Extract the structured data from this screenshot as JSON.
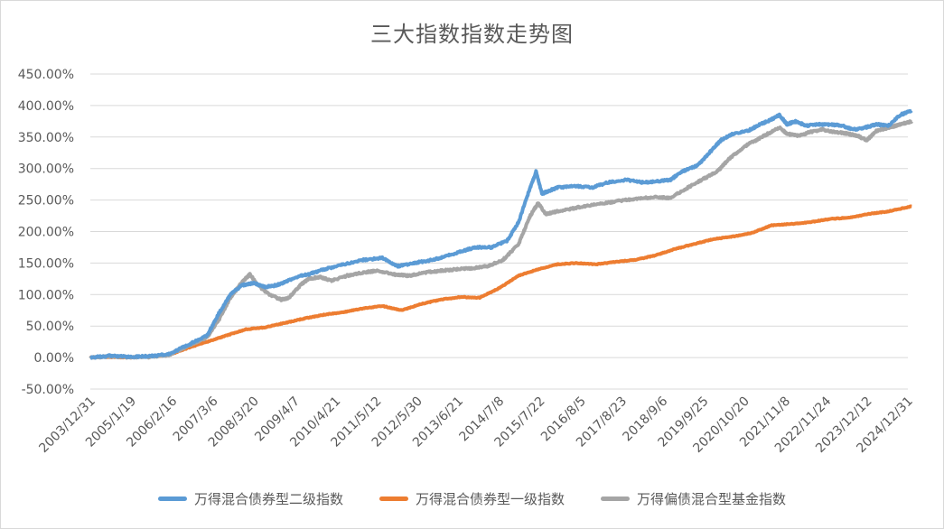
{
  "chart_data": {
    "type": "line",
    "title": "三大指数指数走势图",
    "xlabel": "",
    "ylabel": "",
    "ylim": [
      -50,
      450
    ],
    "yticks": [
      "-50.00%",
      "0.00%",
      "50.00%",
      "100.00%",
      "150.00%",
      "200.00%",
      "250.00%",
      "300.00%",
      "350.00%",
      "400.00%",
      "450.00%"
    ],
    "xticks": [
      "2003/12/31",
      "2005/1/19",
      "2006/2/16",
      "2007/3/6",
      "2008/3/20",
      "2009/4/7",
      "2010/4/21",
      "2011/5/12",
      "2012/5/30",
      "2013/6/21",
      "2014/7/8",
      "2015/7/22",
      "2016/8/5",
      "2017/8/23",
      "2018/9/6",
      "2019/9/25",
      "2020/10/20",
      "2021/11/8",
      "2022/11/24",
      "2023/12/12",
      "2024/12/31"
    ],
    "grid": true,
    "legend_position": "bottom",
    "series": [
      {
        "name": "万得混合债券型二级指数",
        "color": "#5b9bd5",
        "x": [
          2004.0,
          2004.5,
          2005.0,
          2005.5,
          2006.0,
          2006.5,
          2007.0,
          2007.3,
          2007.6,
          2007.9,
          2008.2,
          2008.5,
          2008.8,
          2009.0,
          2009.3,
          2009.6,
          2010.0,
          2010.5,
          2011.0,
          2011.5,
          2011.9,
          2012.3,
          2012.8,
          2013.2,
          2013.6,
          2013.9,
          2014.3,
          2014.7,
          2015.0,
          2015.3,
          2015.45,
          2015.6,
          2015.8,
          2016.0,
          2016.5,
          2016.9,
          2017.3,
          2017.8,
          2018.2,
          2018.6,
          2018.9,
          2019.2,
          2019.6,
          2019.9,
          2020.2,
          2020.5,
          2020.9,
          2021.2,
          2021.5,
          2021.7,
          2021.9,
          2022.1,
          2022.4,
          2022.7,
          2023.0,
          2023.3,
          2023.6,
          2023.9,
          2024.2,
          2024.5,
          2024.8,
          2025.1
        ],
        "y": [
          0,
          3,
          1,
          2,
          5,
          20,
          35,
          70,
          100,
          115,
          118,
          112,
          115,
          120,
          128,
          132,
          140,
          148,
          155,
          158,
          145,
          150,
          155,
          162,
          170,
          175,
          175,
          185,
          215,
          270,
          295,
          260,
          265,
          270,
          272,
          270,
          278,
          282,
          278,
          280,
          282,
          295,
          305,
          325,
          345,
          355,
          360,
          370,
          378,
          385,
          370,
          375,
          368,
          370,
          370,
          368,
          362,
          365,
          370,
          368,
          385,
          392
        ]
      },
      {
        "name": "万得混合债券型一级指数",
        "color": "#ed7d31",
        "x": [
          2004.0,
          2004.5,
          2005.0,
          2005.5,
          2006.0,
          2006.5,
          2007.0,
          2007.5,
          2008.0,
          2008.5,
          2009.0,
          2009.5,
          2010.0,
          2010.5,
          2011.0,
          2011.5,
          2012.0,
          2012.5,
          2013.0,
          2013.5,
          2014.0,
          2014.5,
          2015.0,
          2015.5,
          2016.0,
          2016.5,
          2017.0,
          2017.5,
          2018.0,
          2018.5,
          2019.0,
          2019.5,
          2020.0,
          2020.5,
          2021.0,
          2021.5,
          2022.0,
          2022.5,
          2023.0,
          2023.5,
          2024.0,
          2024.5,
          2025.1
        ],
        "y": [
          0,
          1,
          0,
          2,
          4,
          15,
          25,
          35,
          45,
          48,
          55,
          62,
          68,
          72,
          78,
          82,
          75,
          85,
          92,
          96,
          95,
          110,
          130,
          140,
          148,
          150,
          148,
          152,
          155,
          162,
          172,
          180,
          188,
          192,
          198,
          210,
          212,
          215,
          220,
          222,
          228,
          232,
          240
        ]
      },
      {
        "name": "万得偏债混合型基金指数",
        "color": "#a5a5a5",
        "x": [
          2004.0,
          2004.5,
          2005.0,
          2005.5,
          2006.0,
          2006.5,
          2007.0,
          2007.3,
          2007.6,
          2007.9,
          2008.1,
          2008.3,
          2008.6,
          2008.9,
          2009.1,
          2009.4,
          2009.6,
          2009.9,
          2010.2,
          2010.6,
          2011.0,
          2011.4,
          2011.8,
          2012.2,
          2012.6,
          2013.0,
          2013.4,
          2013.8,
          2014.2,
          2014.6,
          2015.0,
          2015.3,
          2015.5,
          2015.7,
          2016.0,
          2016.5,
          2017.0,
          2017.5,
          2018.0,
          2018.5,
          2018.9,
          2019.3,
          2019.7,
          2020.1,
          2020.4,
          2020.8,
          2021.1,
          2021.4,
          2021.7,
          2021.9,
          2022.2,
          2022.5,
          2022.8,
          2023.1,
          2023.4,
          2023.7,
          2023.95,
          2024.2,
          2024.5,
          2024.8,
          2025.1
        ],
        "y": [
          0,
          2,
          1,
          1,
          4,
          18,
          32,
          60,
          95,
          120,
          132,
          115,
          100,
          92,
          95,
          115,
          125,
          128,
          122,
          130,
          135,
          138,
          132,
          130,
          135,
          138,
          140,
          142,
          145,
          155,
          180,
          225,
          245,
          228,
          232,
          238,
          243,
          248,
          252,
          255,
          253,
          268,
          282,
          295,
          315,
          335,
          345,
          355,
          365,
          355,
          352,
          358,
          362,
          358,
          356,
          352,
          345,
          360,
          365,
          370,
          375
        ]
      }
    ]
  }
}
